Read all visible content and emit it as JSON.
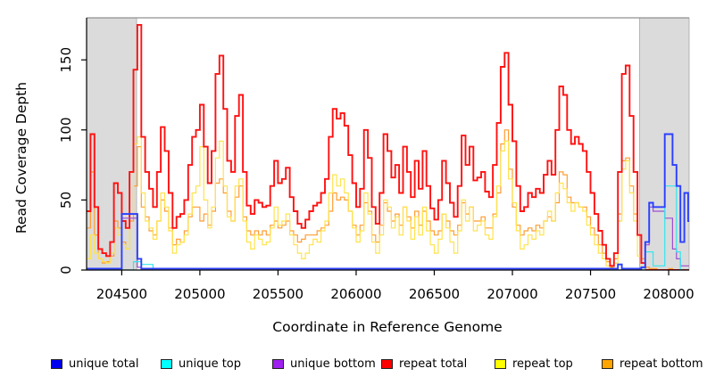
{
  "figure": {
    "xaxis_title": "Coordinate in Reference Genome",
    "yaxis_title": "Read Coverage Depth"
  },
  "legend": {
    "items": [
      {
        "label": "unique total",
        "color": "#0000EE",
        "x": 57
      },
      {
        "label": "unique top",
        "color": "#00FFFF",
        "x": 180
      },
      {
        "label": "unique bottom",
        "color": "#A020F0",
        "x": 305
      },
      {
        "label": "repeat total",
        "color": "#FF0000",
        "x": 427
      },
      {
        "label": "repeat top",
        "color": "#FFFF00",
        "x": 554
      },
      {
        "label": "repeat bottom",
        "color": "#FFA500",
        "x": 674
      }
    ]
  },
  "chart_data": {
    "type": "line",
    "subtype": "step-coverage",
    "title": "",
    "xlabel": "Coordinate in Reference Genome",
    "ylabel": "Read Coverage Depth",
    "xlim": [
      204275,
      208131
    ],
    "ylim": [
      0,
      180
    ],
    "x_ticks": [
      204500,
      205000,
      205500,
      206000,
      206500,
      207000,
      207500,
      208000
    ],
    "y_ticks": [
      0,
      50,
      100,
      150
    ],
    "grid": false,
    "legend_position": "bottom",
    "shaded_regions": [
      [
        204275,
        204595
      ],
      [
        207814,
        208131
      ]
    ],
    "shade_fill": "#DBDBDB",
    "shade_border": "#A8A8A8",
    "x_start": 204275,
    "x_step": 25,
    "series": [
      {
        "name": "repeat bottom",
        "line_color": "#FF9D33",
        "width": 1.2,
        "values": [
          30,
          70,
          25,
          8,
          5,
          6,
          10,
          35,
          30,
          20,
          15,
          35,
          60,
          88,
          45,
          38,
          28,
          25,
          35,
          50,
          42,
          30,
          18,
          22,
          20,
          28,
          38,
          45,
          45,
          35,
          40,
          32,
          42,
          62,
          65,
          55,
          42,
          35,
          52,
          60,
          38,
          28,
          25,
          28,
          25,
          28,
          25,
          32,
          35,
          30,
          32,
          35,
          28,
          25,
          20,
          22,
          25,
          25,
          25,
          28,
          30,
          32,
          42,
          55,
          50,
          52,
          50,
          42,
          32,
          25,
          32,
          48,
          42,
          25,
          20,
          32,
          48,
          42,
          35,
          40,
          32,
          45,
          38,
          30,
          42,
          32,
          42,
          35,
          28,
          25,
          28,
          40,
          35,
          28,
          25,
          32,
          48,
          40,
          45,
          35,
          35,
          38,
          30,
          30,
          40,
          55,
          90,
          100,
          72,
          45,
          32,
          25,
          28,
          30,
          28,
          32,
          30,
          35,
          38,
          35,
          48,
          70,
          68,
          52,
          48,
          48,
          45,
          45,
          38,
          30,
          25,
          18,
          12,
          6,
          2,
          8,
          40,
          78,
          80,
          60,
          40,
          25,
          8,
          2,
          1,
          1,
          0,
          0,
          0,
          1,
          0,
          0,
          0,
          0,
          0
        ]
      },
      {
        "name": "repeat top",
        "line_color": "#FFE34D",
        "width": 1.2,
        "values": [
          8,
          25,
          12,
          8,
          6,
          5,
          12,
          30,
          25,
          18,
          15,
          40,
          90,
          95,
          55,
          35,
          30,
          22,
          35,
          55,
          45,
          28,
          12,
          18,
          20,
          25,
          40,
          55,
          60,
          88,
          50,
          30,
          45,
          80,
          92,
          60,
          38,
          35,
          60,
          65,
          35,
          20,
          15,
          25,
          22,
          18,
          20,
          30,
          45,
          32,
          35,
          40,
          25,
          18,
          12,
          8,
          12,
          18,
          22,
          20,
          28,
          35,
          55,
          68,
          60,
          65,
          55,
          42,
          30,
          20,
          28,
          55,
          40,
          20,
          12,
          25,
          50,
          45,
          30,
          38,
          25,
          45,
          35,
          22,
          38,
          25,
          45,
          28,
          18,
          12,
          22,
          40,
          30,
          20,
          12,
          28,
          50,
          35,
          45,
          28,
          32,
          35,
          25,
          22,
          38,
          60,
          85,
          92,
          65,
          48,
          28,
          15,
          18,
          25,
          22,
          28,
          25,
          35,
          42,
          35,
          55,
          62,
          58,
          48,
          42,
          48,
          45,
          42,
          32,
          25,
          18,
          12,
          8,
          3,
          1,
          5,
          35,
          72,
          78,
          55,
          35,
          10,
          2,
          0,
          0,
          0,
          0,
          0,
          0,
          0,
          0,
          0,
          0,
          0,
          0
        ]
      },
      {
        "name": "repeat total",
        "line_color": "#FF1111",
        "width": 1.9,
        "values": [
          42,
          97,
          45,
          15,
          12,
          10,
          20,
          62,
          55,
          35,
          30,
          70,
          143,
          175,
          95,
          70,
          58,
          45,
          70,
          102,
          85,
          55,
          30,
          38,
          40,
          50,
          75,
          95,
          100,
          118,
          88,
          62,
          85,
          140,
          153,
          115,
          78,
          70,
          110,
          125,
          70,
          46,
          40,
          50,
          48,
          45,
          46,
          60,
          78,
          62,
          65,
          73,
          52,
          42,
          33,
          30,
          36,
          42,
          46,
          48,
          55,
          65,
          95,
          115,
          108,
          112,
          103,
          82,
          62,
          45,
          58,
          100,
          80,
          45,
          33,
          55,
          97,
          85,
          66,
          75,
          55,
          88,
          70,
          52,
          78,
          58,
          85,
          60,
          44,
          36,
          50,
          78,
          62,
          48,
          38,
          60,
          96,
          75,
          88,
          64,
          66,
          70,
          56,
          52,
          75,
          105,
          145,
          155,
          118,
          92,
          60,
          42,
          45,
          55,
          52,
          58,
          55,
          68,
          78,
          68,
          100,
          131,
          125,
          100,
          90,
          95,
          90,
          85,
          70,
          55,
          40,
          28,
          18,
          8,
          3,
          12,
          70,
          140,
          146,
          110,
          70,
          25,
          5,
          0,
          0,
          0,
          0,
          0,
          0,
          0,
          0,
          0,
          0,
          0,
          0
        ]
      },
      {
        "name": "unique bottom",
        "line_color": "#9D50D0",
        "width": 1.2,
        "values": [
          0,
          0,
          0,
          0,
          0,
          0,
          0,
          0,
          0,
          37,
          37,
          37,
          37,
          2,
          0,
          0,
          0,
          0,
          0,
          0,
          0,
          0,
          0,
          0,
          0,
          0,
          0,
          0,
          0,
          0,
          0,
          0,
          0,
          0,
          0,
          0,
          0,
          0,
          0,
          0,
          0,
          0,
          0,
          0,
          0,
          0,
          0,
          0,
          0,
          0,
          0,
          0,
          0,
          0,
          0,
          0,
          0,
          0,
          0,
          0,
          0,
          0,
          0,
          0,
          0,
          0,
          0,
          0,
          0,
          0,
          0,
          0,
          0,
          0,
          0,
          0,
          0,
          0,
          0,
          0,
          0,
          0,
          0,
          0,
          0,
          0,
          0,
          0,
          0,
          0,
          0,
          0,
          0,
          0,
          0,
          0,
          0,
          0,
          0,
          0,
          0,
          0,
          0,
          0,
          0,
          0,
          0,
          0,
          0,
          0,
          0,
          0,
          0,
          0,
          0,
          0,
          0,
          0,
          0,
          0,
          0,
          0,
          0,
          0,
          0,
          0,
          0,
          0,
          0,
          0,
          0,
          0,
          0,
          0,
          0,
          0,
          0,
          0,
          0,
          0,
          0,
          0,
          2,
          18,
          45,
          42,
          42,
          42,
          37,
          37,
          15,
          8,
          3,
          3,
          3
        ]
      },
      {
        "name": "unique top",
        "line_color": "#35E6EE",
        "width": 1.2,
        "values": [
          0,
          0,
          0,
          0,
          0,
          0,
          0,
          0,
          0,
          0,
          0,
          0,
          6,
          6,
          4,
          4,
          4,
          0,
          0,
          0,
          0,
          0,
          0,
          0,
          0,
          0,
          0,
          0,
          0,
          0,
          0,
          0,
          0,
          0,
          0,
          0,
          0,
          0,
          0,
          0,
          0,
          0,
          0,
          0,
          0,
          0,
          0,
          0,
          0,
          0,
          0,
          0,
          0,
          0,
          0,
          0,
          0,
          0,
          0,
          0,
          0,
          0,
          0,
          0,
          0,
          0,
          0,
          0,
          0,
          0,
          0,
          0,
          0,
          0,
          0,
          0,
          0,
          0,
          0,
          0,
          0,
          0,
          0,
          0,
          0,
          0,
          0,
          0,
          0,
          0,
          0,
          0,
          0,
          0,
          0,
          0,
          0,
          0,
          0,
          0,
          0,
          0,
          0,
          0,
          0,
          0,
          0,
          0,
          0,
          0,
          0,
          0,
          0,
          0,
          0,
          0,
          0,
          0,
          0,
          0,
          0,
          0,
          0,
          0,
          0,
          0,
          0,
          0,
          0,
          0,
          0,
          0,
          0,
          0,
          0,
          0,
          0,
          0,
          0,
          0,
          0,
          0,
          0,
          13,
          13,
          3,
          3,
          3,
          60,
          60,
          60,
          13,
          0,
          0,
          0
        ]
      },
      {
        "name": "unique total",
        "line_color": "#2B3FFF",
        "width": 1.9,
        "values": [
          1,
          1,
          1,
          1,
          1,
          1,
          1,
          1,
          1,
          40,
          40,
          40,
          40,
          8,
          1,
          1,
          1,
          1,
          1,
          1,
          1,
          1,
          1,
          1,
          1,
          1,
          1,
          1,
          1,
          1,
          1,
          1,
          1,
          1,
          1,
          1,
          1,
          1,
          1,
          1,
          1,
          1,
          1,
          1,
          1,
          1,
          1,
          1,
          1,
          1,
          1,
          1,
          1,
          1,
          1,
          1,
          1,
          1,
          1,
          1,
          1,
          1,
          1,
          1,
          1,
          1,
          1,
          1,
          1,
          1,
          1,
          1,
          1,
          1,
          1,
          1,
          1,
          1,
          1,
          1,
          1,
          1,
          1,
          1,
          1,
          1,
          1,
          1,
          1,
          1,
          1,
          1,
          1,
          1,
          1,
          1,
          1,
          1,
          1,
          1,
          1,
          1,
          1,
          1,
          1,
          1,
          1,
          1,
          1,
          1,
          1,
          1,
          1,
          1,
          1,
          1,
          1,
          1,
          1,
          1,
          1,
          1,
          1,
          1,
          1,
          1,
          1,
          1,
          1,
          1,
          1,
          1,
          1,
          1,
          1,
          1,
          4,
          1,
          1,
          1,
          1,
          1,
          2,
          20,
          48,
          45,
          45,
          45,
          97,
          97,
          75,
          60,
          20,
          55,
          35
        ]
      }
    ]
  }
}
